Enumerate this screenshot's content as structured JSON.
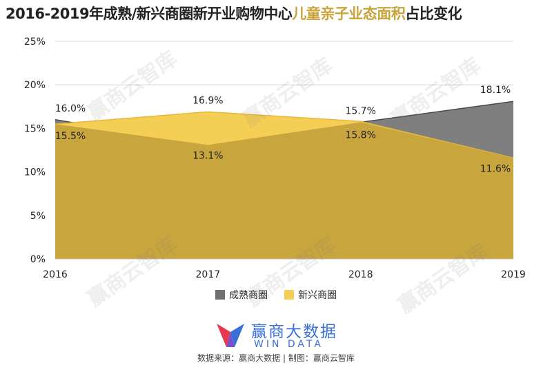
{
  "title": {
    "part1": "2016-2019年成熟/新兴商圈新开业购物中心",
    "highlight": "儿童亲子业态面积",
    "part2": "占比变化"
  },
  "watermark": "赢商云智库",
  "chart_data": {
    "type": "area",
    "x": [
      "2016",
      "2017",
      "2018",
      "2019"
    ],
    "series": [
      {
        "name": "成熟商圈",
        "values": [
          16.0,
          13.1,
          15.7,
          18.1
        ],
        "color": "#7f7f7f"
      },
      {
        "name": "新兴商圈",
        "values": [
          15.5,
          16.9,
          15.8,
          11.6
        ],
        "color": "#f5cf55"
      }
    ],
    "yticks": [
      "0%",
      "5%",
      "10%",
      "15%",
      "20%",
      "25%"
    ],
    "ylim": [
      0,
      25
    ],
    "grid": true,
    "legend_position": "bottom",
    "data_labels": {
      "成熟商圈": [
        "16.0%",
        "13.1%",
        "15.7%",
        "18.1%"
      ],
      "新兴商圈": [
        "15.5%",
        "16.9%",
        "15.8%",
        "11.6%"
      ]
    }
  },
  "legend": [
    {
      "label": "成熟商圈",
      "color": "#6f6f6f"
    },
    {
      "label": "新兴商圈",
      "color": "#f5cf55"
    }
  ],
  "logo": {
    "cn": "赢商大数据",
    "en": "WIN DATA"
  },
  "source": "数据来源：赢商大数据 | 制图：赢商云智库"
}
